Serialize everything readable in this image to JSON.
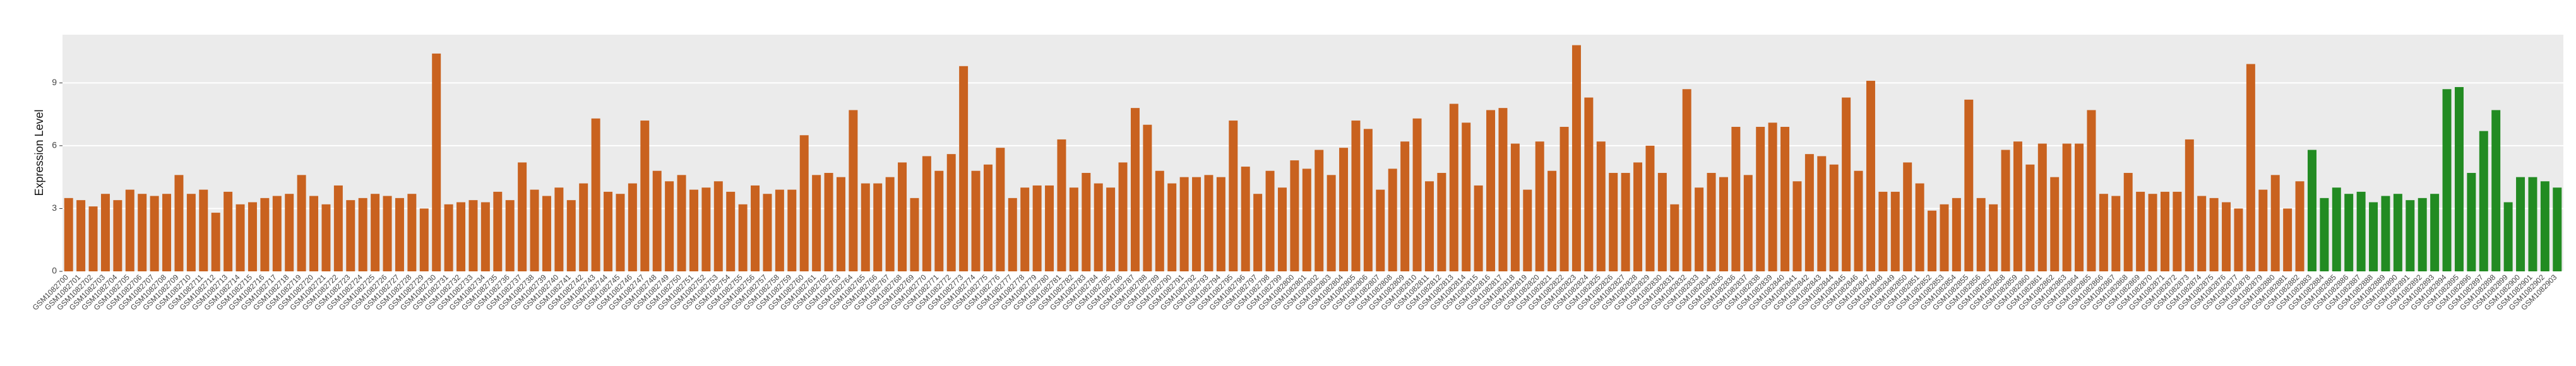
{
  "chart_data": {
    "type": "bar",
    "ylabel": "Expression Level",
    "ylim": [
      0,
      11.3
    ],
    "yticks": [
      0,
      3,
      6,
      9
    ],
    "grid": true,
    "groups": [
      {
        "color": "#c9621f",
        "categories": [
          "GSM1082700",
          "GSM1082701",
          "GSM1082702",
          "GSM1082703",
          "GSM1082704",
          "GSM1082705",
          "GSM1082706",
          "GSM1082707",
          "GSM1082708",
          "GSM1082709",
          "GSM1082710",
          "GSM1082711",
          "GSM1082712",
          "GSM1082713",
          "GSM1082714",
          "GSM1082715",
          "GSM1082716",
          "GSM1082717",
          "GSM1082718",
          "GSM1082719",
          "GSM1082720",
          "GSM1082721",
          "GSM1082722",
          "GSM1082723",
          "GSM1082724",
          "GSM1082725",
          "GSM1082726",
          "GSM1082727",
          "GSM1082728",
          "GSM1082729",
          "GSM1082730",
          "GSM1082731",
          "GSM1082732",
          "GSM1082733",
          "GSM1082734",
          "GSM1082735",
          "GSM1082736",
          "GSM1082737",
          "GSM1082738",
          "GSM1082739",
          "GSM1082740",
          "GSM1082741",
          "GSM1082742",
          "GSM1082743",
          "GSM1082744",
          "GSM1082745",
          "GSM1082746",
          "GSM1082747",
          "GSM1082748",
          "GSM1082749",
          "GSM1082750",
          "GSM1082751",
          "GSM1082752",
          "GSM1082753",
          "GSM1082754",
          "GSM1082755",
          "GSM1082756",
          "GSM1082757",
          "GSM1082758",
          "GSM1082759",
          "GSM1082760",
          "GSM1082761",
          "GSM1082762",
          "GSM1082763",
          "GSM1082764",
          "GSM1082765",
          "GSM1082766",
          "GSM1082767",
          "GSM1082768",
          "GSM1082769",
          "GSM1082770",
          "GSM1082771",
          "GSM1082772",
          "GSM1082773",
          "GSM1082774",
          "GSM1082775",
          "GSM1082776",
          "GSM1082777",
          "GSM1082778",
          "GSM1082779",
          "GSM1082780",
          "GSM1082781",
          "GSM1082782",
          "GSM1082783",
          "GSM1082784",
          "GSM1082785",
          "GSM1082786",
          "GSM1082787",
          "GSM1082788",
          "GSM1082789",
          "GSM1082790",
          "GSM1082791",
          "GSM1082792",
          "GSM1082793",
          "GSM1082794",
          "GSM1082795",
          "GSM1082796",
          "GSM1082797",
          "GSM1082798",
          "GSM1082799",
          "GSM1082800",
          "GSM1082801",
          "GSM1082802",
          "GSM1082803",
          "GSM1082804",
          "GSM1082805",
          "GSM1082806",
          "GSM1082807",
          "GSM1082808",
          "GSM1082809",
          "GSM1082810",
          "GSM1082811",
          "GSM1082812",
          "GSM1082813",
          "GSM1082814",
          "GSM1082815",
          "GSM1082816",
          "GSM1082817",
          "GSM1082818",
          "GSM1082819",
          "GSM1082820",
          "GSM1082821",
          "GSM1082822",
          "GSM1082823",
          "GSM1082824",
          "GSM1082825",
          "GSM1082826",
          "GSM1082827",
          "GSM1082828",
          "GSM1082829",
          "GSM1082830",
          "GSM1082831",
          "GSM1082832",
          "GSM1082833",
          "GSM1082834",
          "GSM1082835",
          "GSM1082836",
          "GSM1082837",
          "GSM1082838",
          "GSM1082839",
          "GSM1082840",
          "GSM1082841",
          "GSM1082842",
          "GSM1082843",
          "GSM1082844",
          "GSM1082845",
          "GSM1082846",
          "GSM1082847",
          "GSM1082848",
          "GSM1082849",
          "GSM1082850",
          "GSM1082851",
          "GSM1082852",
          "GSM1082853",
          "GSM1082854",
          "GSM1082855",
          "GSM1082856",
          "GSM1082857",
          "GSM1082858",
          "GSM1082859",
          "GSM1082860",
          "GSM1082861",
          "GSM1082862",
          "GSM1082863",
          "GSM1082864",
          "GSM1082865",
          "GSM1082866",
          "GSM1082867",
          "GSM1082868",
          "GSM1082869",
          "GSM1082870",
          "GSM1082871",
          "GSM1082872",
          "GSM1082873",
          "GSM1082874",
          "GSM1082875",
          "GSM1082876",
          "GSM1082877",
          "GSM1082878",
          "GSM1082879",
          "GSM1082880",
          "GSM1082881",
          "GSM1082882"
        ],
        "values": [
          3.5,
          3.4,
          3.1,
          3.7,
          3.4,
          3.9,
          3.7,
          3.6,
          3.7,
          4.6,
          3.7,
          3.9,
          2.8,
          3.8,
          3.2,
          3.3,
          3.5,
          3.6,
          3.7,
          4.6,
          3.6,
          3.2,
          4.1,
          3.4,
          3.5,
          3.7,
          3.6,
          3.5,
          3.7,
          3.0,
          10.4,
          3.2,
          3.3,
          3.4,
          3.3,
          3.8,
          3.4,
          5.2,
          3.9,
          3.6,
          4.0,
          3.4,
          4.2,
          7.3,
          3.8,
          3.7,
          4.2,
          7.2,
          4.8,
          4.3,
          4.6,
          3.9,
          4.0,
          4.3,
          3.8,
          3.2,
          4.1,
          3.7,
          3.9,
          3.9,
          6.5,
          4.6,
          4.7,
          4.5,
          7.7,
          4.2,
          4.2,
          4.5,
          5.2,
          3.5,
          5.5,
          4.8,
          5.6,
          9.8,
          4.8,
          5.1,
          5.9,
          3.5,
          4.0,
          4.1,
          4.1,
          6.3,
          4.0,
          4.7,
          4.2,
          4.0,
          5.2,
          7.8,
          7.0,
          4.8,
          4.2,
          4.5,
          4.5,
          4.6,
          4.5,
          7.2,
          5.0,
          3.7,
          4.8,
          4.0,
          5.3,
          4.9,
          5.8,
          4.6,
          5.9,
          7.2,
          6.8,
          3.9,
          4.9,
          6.2,
          7.3,
          4.3,
          4.7,
          8.0,
          7.1,
          4.1,
          7.7,
          7.8,
          6.1,
          3.9,
          6.2,
          4.8,
          6.9,
          10.8,
          8.3,
          6.2,
          4.7,
          4.7,
          5.2,
          6.0,
          4.7,
          3.2,
          8.7,
          4.0,
          4.7,
          4.5,
          6.9,
          4.6,
          6.9,
          7.1,
          6.9,
          4.3,
          5.6,
          5.5,
          5.1,
          8.3,
          4.8,
          9.1,
          3.8,
          3.8,
          5.2,
          4.2,
          2.9,
          3.2,
          3.5,
          8.2,
          3.5,
          3.2,
          5.8,
          6.2,
          5.1,
          6.1,
          4.5,
          6.1,
          6.1,
          7.7,
          3.7,
          3.6,
          4.7,
          3.8,
          3.7,
          3.8,
          3.8,
          6.3,
          3.6,
          3.5,
          3.3,
          3.0,
          9.9,
          3.9,
          4.6,
          3.0,
          4.3
        ]
      },
      {
        "color": "#228b22",
        "categories": [
          "GSM1082883",
          "GSM1082884",
          "GSM1082885",
          "GSM1082886",
          "GSM1082887",
          "GSM1082888",
          "GSM1082889",
          "GSM1082890",
          "GSM1082891",
          "GSM1082892",
          "GSM1082893",
          "GSM1082894",
          "GSM1082895",
          "GSM1082896",
          "GSM1082897",
          "GSM1082898",
          "GSM1082899",
          "GSM1082900",
          "GSM1082901",
          "GSM1082902",
          "GSM1082903"
        ],
        "values": [
          5.8,
          3.5,
          4.0,
          3.7,
          3.8,
          3.3,
          3.6,
          3.7,
          3.4,
          3.5,
          3.7,
          8.7,
          8.8,
          4.7,
          6.7,
          7.7,
          3.3,
          4.5,
          4.5,
          4.3,
          4.0
        ]
      }
    ]
  }
}
